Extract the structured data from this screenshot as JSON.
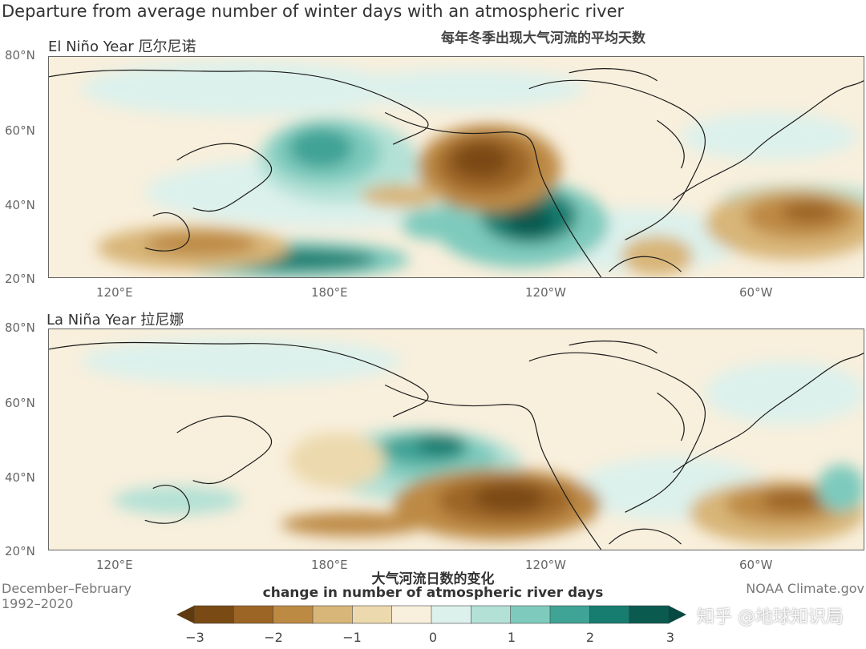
{
  "title": "Departure from average number of winter days with an atmospheric river",
  "subtitle_zh": "每年冬季出现大气河流的平均天数",
  "panels": [
    {
      "label": "El Niño Year 厄尔尼诺",
      "lat_labels": [
        "80°N",
        "60°N",
        "40°N",
        "20°N"
      ],
      "lon_labels": [
        "120°E",
        "180°E",
        "120°W",
        "60°W"
      ]
    },
    {
      "label": "La Niña Year 拉尼娜",
      "lat_labels": [
        "80°N",
        "60°N",
        "40°N",
        "20°N"
      ],
      "lon_labels": [
        "120°E",
        "180°E",
        "120°W",
        "60°W"
      ]
    }
  ],
  "footer": {
    "period_line1": "December–February",
    "period_line2": "1992–2020",
    "source": "NOAA Climate.gov"
  },
  "colorbar": {
    "title_zh": "大气河流日数的变化",
    "title_en": "change in number of atmospheric river days",
    "ticks": [
      "−3",
      "−2",
      "−1",
      "0",
      "1",
      "2",
      "3"
    ],
    "colors": [
      "#7a4a14",
      "#9c6526",
      "#bd8a44",
      "#d8b578",
      "#ecd9ad",
      "#f8efdc",
      "#ddf1ec",
      "#b4e1d6",
      "#7ecabd",
      "#3fa395",
      "#167d70",
      "#0a5a50"
    ]
  },
  "watermark": "知乎 @地球知识局",
  "colors": {
    "neutral_land": "#f8efdc",
    "brown_strong": "#7a4a14",
    "brown_mid": "#bd8a44",
    "teal_strong": "#0a5a50",
    "teal_mid": "#3fa395",
    "teal_light": "#b4e1d6"
  }
}
